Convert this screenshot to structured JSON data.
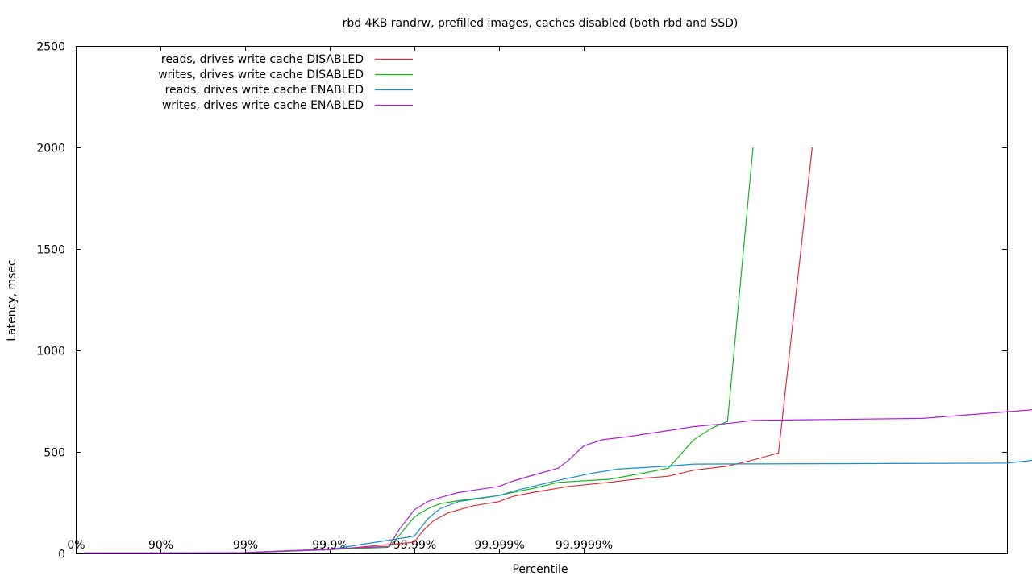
{
  "chart_data": {
    "type": "line",
    "title": "rbd 4KB randrw, prefilled images, caches disabled (both rbd and SSD)",
    "xlabel": "Percentile",
    "ylabel": "Latency, msec",
    "ylim": [
      0,
      2500
    ],
    "y_ticks": [
      0,
      500,
      1000,
      1500,
      2000,
      2500
    ],
    "x_scale": "log-nines (percentile)",
    "x_range": [
      "0%",
      "99.999999999%"
    ],
    "x_ticks": [
      {
        "p": "0%",
        "label": "0%"
      },
      {
        "p": "90%",
        "label": "90%"
      },
      {
        "p": "99%",
        "label": "99%"
      },
      {
        "p": "99.9%",
        "label": "99.9%"
      },
      {
        "p": "99.99%",
        "label": "99.99%"
      },
      {
        "p": "99.999%",
        "label": "99.999%"
      },
      {
        "p": "99.9999%",
        "label": "99.9999%"
      }
    ],
    "grid": false,
    "legend_position": "top-left",
    "series": [
      {
        "name": "reads, drives write cache DISABLED",
        "color": "#e0303a",
        "points": [
          [
            "20%",
            2
          ],
          [
            "90%",
            2
          ],
          [
            "99%",
            4
          ],
          [
            "99.9%",
            18
          ],
          [
            "99.99%",
            55
          ],
          [
            "99.992%",
            110
          ],
          [
            "99.994%",
            160
          ],
          [
            "99.996%",
            200
          ],
          [
            "99.998%",
            235
          ],
          [
            "99.999%",
            255
          ],
          [
            "99.9993%",
            280
          ],
          [
            "99.9996%",
            300
          ],
          [
            "99.99985%",
            330
          ],
          [
            "99.99995%",
            350
          ],
          [
            "99.99998%",
            370
          ],
          [
            "99.99999%",
            380
          ],
          [
            "99.999995%",
            410
          ],
          [
            "99.999998%",
            430
          ],
          [
            "99.999999%",
            460
          ],
          [
            "99.9999995%",
            495
          ],
          [
            "99.9999998%",
            2000
          ]
        ]
      },
      {
        "name": "writes, drives write cache DISABLED",
        "color": "#1ab51a",
        "points": [
          [
            "20%",
            2
          ],
          [
            "90%",
            2
          ],
          [
            "99%",
            4
          ],
          [
            "99.9%",
            20
          ],
          [
            "99.98%",
            30
          ],
          [
            "99.985%",
            90
          ],
          [
            "99.99%",
            180
          ],
          [
            "99.993%",
            220
          ],
          [
            "99.995%",
            245
          ],
          [
            "99.997%",
            260
          ],
          [
            "99.999%",
            285
          ],
          [
            "99.9993%",
            300
          ],
          [
            "99.9996%",
            320
          ],
          [
            "99.9998%",
            350
          ],
          [
            "99.99995%",
            365
          ],
          [
            "99.99998%",
            395
          ],
          [
            "99.99999%",
            420
          ],
          [
            "99.999995%",
            560
          ],
          [
            "99.999997%",
            620
          ],
          [
            "99.999998%",
            650
          ],
          [
            "99.999999%",
            2000
          ]
        ]
      },
      {
        "name": "reads, drives write cache ENABLED",
        "color": "#1a8fc9",
        "points": [
          [
            "20%",
            2
          ],
          [
            "90%",
            2
          ],
          [
            "99%",
            4
          ],
          [
            "99.9%",
            20
          ],
          [
            "99.99%",
            85
          ],
          [
            "99.993%",
            170
          ],
          [
            "99.995%",
            220
          ],
          [
            "99.997%",
            255
          ],
          [
            "99.999%",
            285
          ],
          [
            "99.9993%",
            305
          ],
          [
            "99.9996%",
            330
          ],
          [
            "99.9998%",
            360
          ],
          [
            "99.99992%",
            395
          ],
          [
            "99.99996%",
            415
          ],
          [
            "99.99999%",
            430
          ],
          [
            "99.999995%",
            440
          ],
          [
            "99.999999999%",
            445
          ],
          [
            "99.9999999999%",
            490
          ]
        ]
      },
      {
        "name": "writes, drives write cache ENABLED",
        "color": "#b020d8",
        "points": [
          [
            "20%",
            2
          ],
          [
            "90%",
            2
          ],
          [
            "99%",
            4
          ],
          [
            "99.9%",
            22
          ],
          [
            "99.98%",
            35
          ],
          [
            "99.985%",
            120
          ],
          [
            "99.99%",
            215
          ],
          [
            "99.993%",
            255
          ],
          [
            "99.995%",
            275
          ],
          [
            "99.997%",
            300
          ],
          [
            "99.999%",
            330
          ],
          [
            "99.9993%",
            355
          ],
          [
            "99.9996%",
            385
          ],
          [
            "99.9998%",
            420
          ],
          [
            "99.99985%",
            460
          ],
          [
            "99.9999%",
            530
          ],
          [
            "99.99994%",
            560
          ],
          [
            "99.99997%",
            575
          ],
          [
            "99.99999%",
            605
          ],
          [
            "99.999995%",
            625
          ],
          [
            "99.999998%",
            640
          ],
          [
            "99.999999%",
            655
          ],
          [
            "99.99999999%",
            665
          ],
          [
            "99.9999999999%",
            730
          ]
        ]
      }
    ]
  }
}
